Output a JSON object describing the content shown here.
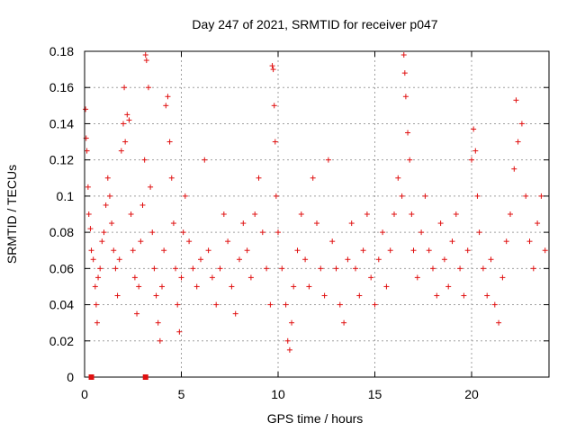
{
  "chart_data": {
    "type": "scatter",
    "title": "Day 247 of 2021, SRMTID for receiver p047",
    "xlabel": "GPS time / hours",
    "ylabel": "SRMTID / TECUs",
    "xlim": [
      0,
      24
    ],
    "ylim": [
      0,
      0.18
    ],
    "x_ticks": [
      "0",
      "5",
      "10",
      "15",
      "20"
    ],
    "y_ticks": [
      "0",
      "0.02",
      "0.04",
      "0.06",
      "0.08",
      "0.1",
      "0.12",
      "0.14",
      "0.16",
      "0.18"
    ],
    "grid": true,
    "marker": "plus",
    "color": "#e01010",
    "series": [
      {
        "name": "p047",
        "points": [
          [
            0.05,
            0.148
          ],
          [
            0.08,
            0.132
          ],
          [
            0.12,
            0.125
          ],
          [
            0.18,
            0.105
          ],
          [
            0.22,
            0.09
          ],
          [
            0.3,
            0.082
          ],
          [
            0.35,
            0.07
          ],
          [
            0.45,
            0.065
          ],
          [
            0.55,
            0.05
          ],
          [
            0.6,
            0.04
          ],
          [
            0.65,
            0.03
          ],
          [
            0.7,
            0.055
          ],
          [
            0.8,
            0.06
          ],
          [
            0.9,
            0.075
          ],
          [
            1.0,
            0.08
          ],
          [
            1.1,
            0.095
          ],
          [
            1.2,
            0.11
          ],
          [
            1.3,
            0.1
          ],
          [
            1.4,
            0.085
          ],
          [
            1.5,
            0.07
          ],
          [
            1.6,
            0.06
          ],
          [
            1.7,
            0.045
          ],
          [
            1.8,
            0.065
          ],
          [
            1.9,
            0.125
          ],
          [
            2.0,
            0.14
          ],
          [
            2.05,
            0.16
          ],
          [
            2.1,
            0.13
          ],
          [
            2.2,
            0.145
          ],
          [
            2.3,
            0.142
          ],
          [
            2.4,
            0.09
          ],
          [
            2.5,
            0.07
          ],
          [
            2.6,
            0.055
          ],
          [
            2.7,
            0.035
          ],
          [
            2.8,
            0.05
          ],
          [
            2.9,
            0.075
          ],
          [
            3.0,
            0.095
          ],
          [
            3.1,
            0.12
          ],
          [
            3.15,
            0.178
          ],
          [
            3.2,
            0.175
          ],
          [
            3.3,
            0.16
          ],
          [
            3.4,
            0.105
          ],
          [
            3.5,
            0.08
          ],
          [
            3.6,
            0.06
          ],
          [
            3.7,
            0.045
          ],
          [
            3.8,
            0.03
          ],
          [
            3.9,
            0.02
          ],
          [
            4.0,
            0.05
          ],
          [
            4.1,
            0.07
          ],
          [
            4.2,
            0.15
          ],
          [
            4.3,
            0.155
          ],
          [
            4.4,
            0.13
          ],
          [
            4.5,
            0.11
          ],
          [
            4.6,
            0.085
          ],
          [
            4.7,
            0.06
          ],
          [
            4.8,
            0.04
          ],
          [
            4.9,
            0.025
          ],
          [
            5.0,
            0.055
          ],
          [
            5.1,
            0.08
          ],
          [
            5.2,
            0.1
          ],
          [
            5.4,
            0.075
          ],
          [
            5.6,
            0.06
          ],
          [
            5.8,
            0.05
          ],
          [
            6.0,
            0.065
          ],
          [
            6.2,
            0.12
          ],
          [
            6.4,
            0.07
          ],
          [
            6.6,
            0.055
          ],
          [
            6.8,
            0.04
          ],
          [
            7.0,
            0.06
          ],
          [
            7.2,
            0.09
          ],
          [
            7.4,
            0.075
          ],
          [
            7.6,
            0.05
          ],
          [
            7.8,
            0.035
          ],
          [
            8.0,
            0.065
          ],
          [
            8.2,
            0.085
          ],
          [
            8.4,
            0.07
          ],
          [
            8.6,
            0.055
          ],
          [
            8.8,
            0.09
          ],
          [
            9.0,
            0.11
          ],
          [
            9.2,
            0.08
          ],
          [
            9.4,
            0.06
          ],
          [
            9.6,
            0.04
          ],
          [
            9.7,
            0.172
          ],
          [
            9.75,
            0.17
          ],
          [
            9.8,
            0.15
          ],
          [
            9.85,
            0.13
          ],
          [
            9.9,
            0.1
          ],
          [
            10.0,
            0.08
          ],
          [
            10.2,
            0.06
          ],
          [
            10.4,
            0.04
          ],
          [
            10.5,
            0.02
          ],
          [
            10.6,
            0.015
          ],
          [
            10.7,
            0.03
          ],
          [
            10.8,
            0.05
          ],
          [
            11.0,
            0.07
          ],
          [
            11.2,
            0.09
          ],
          [
            11.4,
            0.065
          ],
          [
            11.6,
            0.05
          ],
          [
            11.8,
            0.11
          ],
          [
            12.0,
            0.085
          ],
          [
            12.2,
            0.06
          ],
          [
            12.4,
            0.045
          ],
          [
            12.6,
            0.12
          ],
          [
            12.8,
            0.075
          ],
          [
            13.0,
            0.06
          ],
          [
            13.2,
            0.04
          ],
          [
            13.4,
            0.03
          ],
          [
            13.6,
            0.065
          ],
          [
            13.8,
            0.085
          ],
          [
            14.0,
            0.06
          ],
          [
            14.2,
            0.045
          ],
          [
            14.4,
            0.07
          ],
          [
            14.6,
            0.09
          ],
          [
            14.8,
            0.055
          ],
          [
            15.0,
            0.04
          ],
          [
            15.2,
            0.065
          ],
          [
            15.4,
            0.08
          ],
          [
            15.6,
            0.05
          ],
          [
            15.8,
            0.07
          ],
          [
            16.0,
            0.09
          ],
          [
            16.2,
            0.11
          ],
          [
            16.4,
            0.1
          ],
          [
            16.5,
            0.178
          ],
          [
            16.55,
            0.168
          ],
          [
            16.6,
            0.155
          ],
          [
            16.7,
            0.135
          ],
          [
            16.8,
            0.12
          ],
          [
            16.9,
            0.09
          ],
          [
            17.0,
            0.07
          ],
          [
            17.2,
            0.055
          ],
          [
            17.4,
            0.08
          ],
          [
            17.6,
            0.1
          ],
          [
            17.8,
            0.07
          ],
          [
            18.0,
            0.06
          ],
          [
            18.2,
            0.045
          ],
          [
            18.4,
            0.085
          ],
          [
            18.6,
            0.065
          ],
          [
            18.8,
            0.05
          ],
          [
            19.0,
            0.075
          ],
          [
            19.2,
            0.09
          ],
          [
            19.4,
            0.06
          ],
          [
            19.6,
            0.045
          ],
          [
            19.8,
            0.07
          ],
          [
            20.0,
            0.12
          ],
          [
            20.1,
            0.137
          ],
          [
            20.2,
            0.125
          ],
          [
            20.3,
            0.1
          ],
          [
            20.4,
            0.08
          ],
          [
            20.6,
            0.06
          ],
          [
            20.8,
            0.045
          ],
          [
            21.0,
            0.065
          ],
          [
            21.2,
            0.04
          ],
          [
            21.4,
            0.03
          ],
          [
            21.6,
            0.055
          ],
          [
            21.8,
            0.075
          ],
          [
            22.0,
            0.09
          ],
          [
            22.2,
            0.115
          ],
          [
            22.3,
            0.153
          ],
          [
            22.4,
            0.13
          ],
          [
            22.6,
            0.14
          ],
          [
            22.8,
            0.1
          ],
          [
            23.0,
            0.075
          ],
          [
            23.2,
            0.06
          ],
          [
            23.4,
            0.085
          ],
          [
            23.6,
            0.1
          ],
          [
            23.8,
            0.07
          ]
        ]
      }
    ],
    "baseline_marks_x": [
      0.35,
      3.15
    ]
  }
}
